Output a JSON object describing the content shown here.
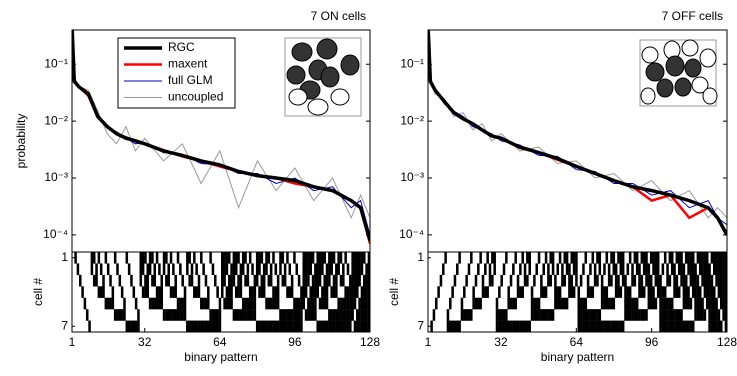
{
  "chart_data": [
    {
      "type": "line",
      "title": "7 ON cells",
      "ylabel": "probability",
      "raster_label": "cell #",
      "xlabel": "binary pattern",
      "raster_ticks": [
        1,
        7
      ],
      "x": [
        1,
        2,
        4,
        8,
        12,
        16,
        20,
        24,
        28,
        32,
        40,
        48,
        56,
        64,
        72,
        80,
        88,
        96,
        104,
        112,
        120,
        124,
        128
      ],
      "xlim": [
        1,
        128
      ],
      "xticks": [
        1,
        32,
        64,
        96,
        128
      ],
      "ylim": [
        5e-05,
        0.4
      ],
      "log_y": true,
      "yticks": [
        {
          "value": 0.1,
          "label": "10⁻¹"
        },
        {
          "value": 0.01,
          "label": "10⁻²"
        },
        {
          "value": 0.001,
          "label": "10⁻³"
        },
        {
          "value": 0.0001,
          "label": "10⁻⁴"
        }
      ],
      "legend": "upper left",
      "series": [
        {
          "name": "RGC",
          "color": "#000000",
          "values": [
            0.5,
            0.05,
            0.04,
            0.03,
            0.012,
            0.008,
            0.006,
            0.005,
            0.0045,
            0.004,
            0.003,
            0.0025,
            0.002,
            0.0017,
            0.0013,
            0.0011,
            0.001,
            0.0009,
            0.0007,
            0.0006,
            0.0004,
            0.0003,
            8e-05
          ]
        },
        {
          "name": "maxent",
          "color": "#ff0000",
          "values": [
            0.5,
            0.05,
            0.04,
            0.028,
            0.012,
            0.008,
            0.006,
            0.0052,
            0.0045,
            0.004,
            0.0031,
            0.0024,
            0.002,
            0.0016,
            0.0013,
            0.0011,
            0.001,
            0.0008,
            0.0007,
            0.0006,
            0.0004,
            0.0003,
            7e-05
          ]
        },
        {
          "name": "full GLM",
          "color": "#0000cc",
          "values": [
            0.45,
            0.05,
            0.042,
            0.032,
            0.013,
            0.008,
            0.0065,
            0.005,
            0.004,
            0.0042,
            0.0028,
            0.0026,
            0.0018,
            0.0017,
            0.0012,
            0.0012,
            0.0008,
            0.001,
            0.0006,
            0.0007,
            0.0003,
            0.0004,
            0.0001
          ]
        },
        {
          "name": "uncoupled",
          "color": "#999999",
          "values": [
            0.4,
            0.06,
            0.04,
            0.035,
            0.015,
            0.006,
            0.004,
            0.008,
            0.003,
            0.005,
            0.002,
            0.004,
            0.0008,
            0.003,
            0.0003,
            0.002,
            0.0006,
            0.0015,
            0.0004,
            0.001,
            0.0002,
            0.0005,
            0.0002
          ]
        }
      ],
      "patterns": [
        0,
        1,
        2,
        4,
        8,
        16,
        32,
        64,
        3,
        5,
        6,
        9,
        10,
        12,
        17,
        18,
        20,
        24,
        33,
        34,
        36,
        40,
        48,
        65,
        66,
        68,
        72,
        80,
        96,
        7,
        11,
        13,
        14,
        19,
        21,
        22,
        25,
        26,
        28,
        35,
        37,
        38,
        41,
        42,
        44,
        49,
        50,
        52,
        56,
        67,
        69,
        70,
        73,
        74,
        76,
        81,
        82,
        84,
        88,
        97,
        98,
        100,
        104,
        112,
        15,
        23,
        27,
        29,
        30,
        39,
        43,
        45,
        46,
        51,
        53,
        54,
        57,
        58,
        60,
        71,
        75,
        77,
        78,
        83,
        85,
        86,
        89,
        90,
        92,
        99,
        101,
        102,
        105,
        106,
        108,
        113,
        114,
        116,
        120,
        31,
        47,
        55,
        59,
        61,
        62,
        79,
        87,
        91,
        93,
        94,
        103,
        107,
        109,
        110,
        115,
        117,
        118,
        121,
        122,
        124,
        63,
        95,
        111,
        119,
        123,
        125,
        126,
        127
      ]
    },
    {
      "type": "line",
      "title": "7 OFF cells",
      "raster_label": "cell #",
      "xlabel": "binary pattern",
      "raster_ticks": [
        1,
        7
      ],
      "x": [
        1,
        2,
        4,
        8,
        12,
        16,
        20,
        24,
        28,
        32,
        40,
        48,
        56,
        64,
        72,
        80,
        88,
        96,
        104,
        112,
        120,
        124,
        128
      ],
      "xlim": [
        1,
        128
      ],
      "xticks": [
        1,
        32,
        64,
        96,
        128
      ],
      "ylim": [
        5e-05,
        0.4
      ],
      "log_y": true,
      "yticks": [
        {
          "value": 0.1,
          "label": "10⁻¹"
        },
        {
          "value": 0.01,
          "label": "10⁻²"
        },
        {
          "value": 0.001,
          "label": "10⁻³"
        },
        {
          "value": 0.0001,
          "label": "10⁻⁴"
        }
      ],
      "series": [
        {
          "color": "#000000",
          "values": [
            0.5,
            0.05,
            0.035,
            0.022,
            0.014,
            0.011,
            0.009,
            0.007,
            0.0055,
            0.005,
            0.0035,
            0.0028,
            0.0022,
            0.0016,
            0.0012,
            0.0009,
            0.0007,
            0.0006,
            0.0005,
            0.0004,
            0.0003,
            0.0002,
            0.0001
          ]
        },
        {
          "color": "#ff0000",
          "values": [
            0.5,
            0.05,
            0.034,
            0.022,
            0.014,
            0.011,
            0.009,
            0.007,
            0.0056,
            0.005,
            0.0034,
            0.0028,
            0.0021,
            0.0016,
            0.0012,
            0.0009,
            0.0007,
            0.0004,
            0.0005,
            0.0002,
            0.0003,
            0.0002,
            0.0001
          ]
        },
        {
          "color": "#0000cc",
          "values": [
            0.45,
            0.05,
            0.036,
            0.02,
            0.015,
            0.012,
            0.008,
            0.007,
            0.006,
            0.0045,
            0.0038,
            0.0025,
            0.0024,
            0.0014,
            0.0013,
            0.0008,
            0.0008,
            0.0005,
            0.0006,
            0.0003,
            0.0004,
            0.0002,
            0.00015
          ]
        },
        {
          "color": "#999999",
          "values": [
            0.4,
            0.055,
            0.03,
            0.025,
            0.012,
            0.014,
            0.007,
            0.009,
            0.0045,
            0.006,
            0.003,
            0.0035,
            0.0018,
            0.002,
            0.001,
            0.0012,
            0.0006,
            0.0009,
            0.0004,
            0.0006,
            0.0002,
            0.0003,
            0.0002
          ]
        }
      ],
      "patterns": [
        0,
        64,
        32,
        16,
        8,
        4,
        2,
        1,
        96,
        80,
        72,
        68,
        66,
        65,
        48,
        40,
        36,
        34,
        33,
        24,
        20,
        18,
        17,
        12,
        10,
        9,
        6,
        5,
        3,
        112,
        104,
        100,
        98,
        97,
        88,
        84,
        82,
        81,
        76,
        74,
        73,
        70,
        69,
        67,
        56,
        52,
        50,
        49,
        44,
        42,
        41,
        38,
        37,
        35,
        28,
        26,
        25,
        22,
        21,
        19,
        14,
        13,
        11,
        7,
        120,
        116,
        114,
        113,
        108,
        106,
        105,
        102,
        101,
        99,
        92,
        90,
        89,
        86,
        85,
        83,
        78,
        77,
        75,
        71,
        60,
        58,
        57,
        54,
        53,
        51,
        46,
        45,
        43,
        39,
        30,
        29,
        27,
        23,
        15,
        124,
        122,
        121,
        118,
        117,
        115,
        110,
        109,
        107,
        103,
        94,
        93,
        91,
        87,
        79,
        62,
        61,
        59,
        55,
        47,
        31,
        126,
        125,
        123,
        119,
        111,
        95,
        63,
        127
      ]
    }
  ]
}
